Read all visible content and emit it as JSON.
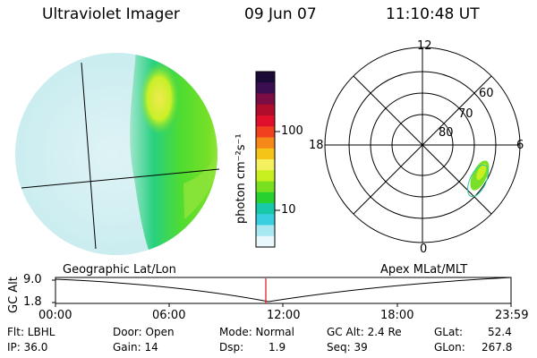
{
  "header": {
    "instrument": "Ultraviolet Imager",
    "date": "09 Jun 07",
    "time": "11:10:48 UT"
  },
  "colorbar": {
    "label": "photon cm⁻²s⁻¹",
    "ticks": [
      "100",
      "10"
    ],
    "colors": [
      "#1a0a35",
      "#3a0e50",
      "#7a0e44",
      "#b00c2c",
      "#e0102c",
      "#f04020",
      "#f48818",
      "#f4c418",
      "#f4f060",
      "#c8f020",
      "#78e020",
      "#28d030",
      "#18c8a8",
      "#38d0e0",
      "#a8e8f0",
      "#e8f8fb"
    ]
  },
  "polar_plot": {
    "mlt_labels": [
      "12",
      "18",
      "6",
      "0"
    ],
    "lat_labels": [
      "60",
      "70",
      "80"
    ]
  },
  "altitude_plot": {
    "left_label": "Geographic Lat/Lon",
    "right_label": "Apex MLat/MLT",
    "axis_title": "GC Alt",
    "yticks": [
      "9.0",
      "1.8"
    ],
    "xticks": [
      "00:00",
      "06:00",
      "12:00",
      "18:00",
      "23:59"
    ],
    "current_marker_time": "11:10:48"
  },
  "status": {
    "flt": "Flt: LBHL",
    "ip": "IP: 36.0",
    "door": "Door: Open",
    "gain": "Gain: 14",
    "mode": "Mode: Normal",
    "dsp_label": "Dsp:",
    "dsp_value": "1.9",
    "gc_alt": "GC Alt: 2.4 Re",
    "seq": "Seq: 39",
    "glat": "GLat:",
    "glat_value": "52.4",
    "glon": "GLon:",
    "glon_value": "267.8"
  }
}
